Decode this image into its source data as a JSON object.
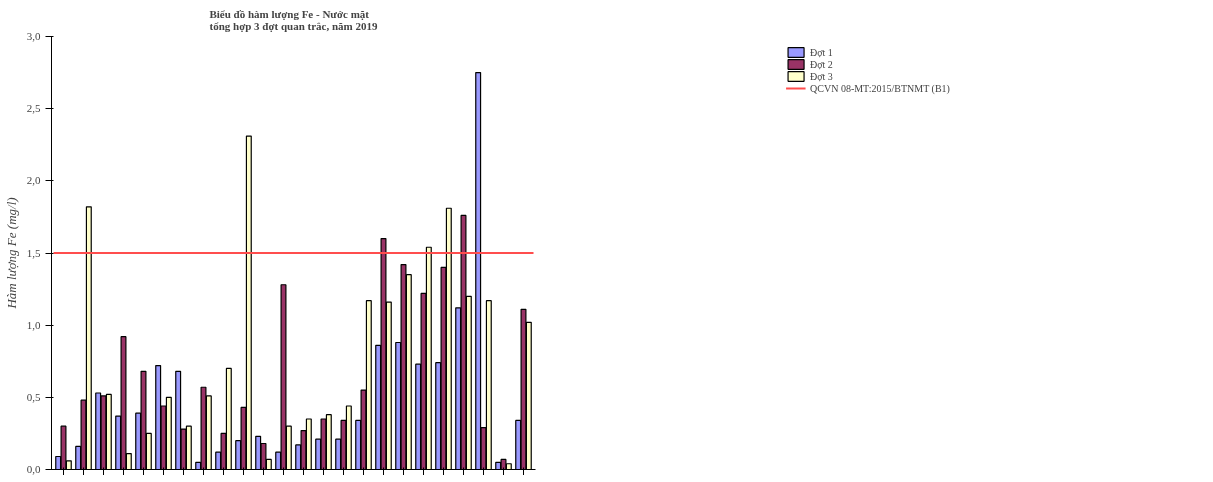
{
  "chart_data": {
    "type": "bar",
    "title": "Biểu đồ hàm lượng Fe - Nước mặt\ntổng hợp 3 đợt quan trắc, năm 2019",
    "ylabel": "Hàm lượng Fe (mg/l)",
    "categories": [
      null,
      null,
      null,
      null,
      null,
      null,
      null,
      null,
      null,
      null,
      null,
      null,
      null,
      null,
      null,
      null,
      null,
      null,
      null,
      null,
      null,
      null,
      null,
      null
    ],
    "series": [
      {
        "name": "Đợt 1",
        "color": "#9999ff",
        "values": [
          0.09,
          0.16,
          0.53,
          0.37,
          0.39,
          0.72,
          0.68,
          0.05,
          0.12,
          0.2,
          0.23,
          0.12,
          0.17,
          0.21,
          0.21,
          0.34,
          0.86,
          0.88,
          0.73,
          0.74,
          1.12,
          2.75,
          0.05,
          0.34
        ]
      },
      {
        "name": "Đợt 2",
        "color": "#993366",
        "values": [
          0.3,
          0.48,
          0.51,
          0.92,
          0.68,
          0.44,
          0.28,
          0.57,
          0.25,
          0.43,
          0.18,
          1.28,
          0.27,
          0.35,
          0.34,
          0.55,
          1.6,
          1.42,
          1.22,
          1.4,
          1.76,
          0.29,
          0.07,
          1.11
        ]
      },
      {
        "name": "Đợt 3",
        "color": "#ffffcc",
        "values": [
          0.06,
          1.82,
          0.52,
          0.11,
          0.25,
          0.5,
          0.3,
          0.51,
          0.7,
          2.31,
          0.07,
          0.3,
          0.35,
          0.38,
          0.44,
          1.17,
          1.16,
          1.35,
          1.54,
          1.81,
          1.2,
          1.17,
          0.04,
          1.02
        ]
      }
    ],
    "ref_lines": [
      {
        "axis": "y",
        "value": 1.5,
        "label": "QCVN 08-MT:2015/BTNMT (B1)",
        "color": "#ff4d4d"
      }
    ],
    "ylim": [
      0,
      3
    ],
    "yticks": [
      {
        "value": 0,
        "label": "0,0"
      },
      {
        "value": 0.5,
        "label": "0,5"
      },
      {
        "value": 1,
        "label": "1,0"
      },
      {
        "value": 1.5,
        "label": "1,5"
      },
      {
        "value": 2,
        "label": "2,0"
      },
      {
        "value": 2.5,
        "label": "2,5"
      },
      {
        "value": 3,
        "label": "3,0"
      }
    ],
    "grid": false,
    "legend": "top right"
  }
}
